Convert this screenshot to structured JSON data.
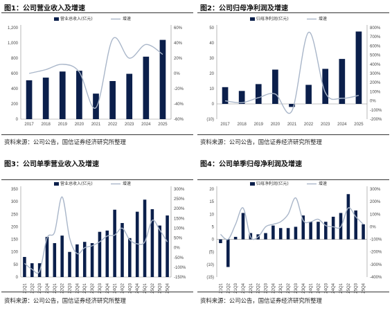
{
  "figures": [
    {
      "title": "图1：公司营业收入及增速",
      "source": "资料来源：公司公告，国信证券经济研究所整理"
    },
    {
      "title": "图2：公司归母净利润及增速",
      "source": "资料来源：公司公告，国信证券经济研究所整理"
    },
    {
      "title": "图3：公司单季营业收入及增速",
      "source": "资料来源：公司公告，国信证券经济研究所整理"
    },
    {
      "title": "图4：公司单季归母净利润及增速",
      "source": "资料来源：公司公告，国信证券经济研究所整理"
    }
  ],
  "colors": {
    "bar": "#0b1f4b",
    "line": "#a9b6c9",
    "axis": "#888888"
  },
  "chart_data": [
    {
      "type": "bar",
      "title": "",
      "categories": [
        "2017",
        "2018",
        "2019",
        "2020",
        "2021",
        "2022",
        "2023",
        "2024",
        "2025"
      ],
      "series": [
        {
          "name": "营业总收入(亿元)",
          "kind": "bar",
          "axis": "left",
          "values": [
            510,
            545,
            625,
            635,
            335,
            500,
            595,
            820,
            1040
          ]
        },
        {
          "name": "增速",
          "kind": "line",
          "axis": "right",
          "unit": "%",
          "values": [
            0,
            5,
            12,
            2,
            -45,
            45,
            20,
            38,
            25
          ]
        }
      ],
      "ylim": [
        0,
        1200
      ],
      "yticks": [
        "0",
        "200",
        "400",
        "600",
        "800",
        "1,000",
        "1,200"
      ],
      "y2lim": [
        -60,
        60
      ],
      "y2ticks": [
        "-60%",
        "-40%",
        "-20%",
        "0%",
        "20%",
        "40%",
        "60%"
      ],
      "legend": "top"
    },
    {
      "type": "bar",
      "title": "",
      "categories": [
        "2017",
        "2018",
        "2019",
        "2020",
        "2021",
        "2022",
        "2023",
        "2024",
        "2025"
      ],
      "series": [
        {
          "name": "归母净利润(亿元)",
          "kind": "bar",
          "axis": "left",
          "values": [
            11,
            8.5,
            13,
            22.5,
            -2,
            12.5,
            23,
            29.5,
            47.5
          ]
        },
        {
          "name": "增速",
          "kind": "line",
          "axis": "right",
          "unit": "%",
          "values": [
            0,
            -20,
            35,
            75,
            -110,
            750,
            90,
            28,
            60
          ]
        }
      ],
      "ylim": [
        -10,
        50
      ],
      "yticks": [
        "(10)",
        "0",
        "10",
        "20",
        "30",
        "40",
        "50"
      ],
      "y2lim": [
        -200,
        800
      ],
      "y2ticks": [
        "-200%",
        "-100%",
        "0%",
        "100%",
        "200%",
        "300%",
        "400%",
        "500%",
        "600%",
        "700%",
        "800%"
      ],
      "legend": "top"
    },
    {
      "type": "bar",
      "title": "",
      "categories": [
        "21Q1",
        "21Q2",
        "21Q3",
        "21Q4",
        "22Q1",
        "22Q2",
        "22Q3",
        "22Q4",
        "23Q1",
        "23Q2",
        "23Q3",
        "23Q4",
        "24Q1",
        "24Q2",
        "24Q3",
        "24Q4",
        "25Q1",
        "25Q2",
        "25Q3",
        "25Q4"
      ],
      "series": [
        {
          "name": "营业总收入(亿元)",
          "kind": "bar",
          "axis": "left",
          "values": [
            80,
            55,
            55,
            160,
            135,
            165,
            100,
            130,
            140,
            135,
            180,
            185,
            268,
            215,
            155,
            260,
            308,
            270,
            205,
            245
          ]
        },
        {
          "name": "增速",
          "kind": "line",
          "axis": "right",
          "unit": "%",
          "values": [
            -80,
            -110,
            -120,
            50,
            80,
            260,
            50,
            -30,
            0,
            10,
            30,
            60,
            65,
            100,
            40,
            20,
            30,
            140,
            90,
            30
          ]
        }
      ],
      "ylim": [
        0,
        350
      ],
      "yticks": [
        "0",
        "50",
        "100",
        "150",
        "200",
        "250",
        "300",
        "350"
      ],
      "y2lim": [
        -150,
        300
      ],
      "y2ticks": [
        "-150%",
        "-100%",
        "-50%",
        "0%",
        "50%",
        "100%",
        "150%",
        "200%",
        "250%",
        "300%"
      ],
      "legend": "top"
    },
    {
      "type": "bar",
      "title": "",
      "categories": [
        "21Q1",
        "21Q2",
        "21Q3",
        "21Q4",
        "22Q1",
        "22Q2",
        "22Q3",
        "22Q4",
        "23Q1",
        "23Q2",
        "23Q3",
        "23Q4",
        "24Q1",
        "24Q2",
        "24Q3",
        "24Q4",
        "25Q1",
        "25Q2",
        "25Q3",
        "25Q4"
      ],
      "series": [
        {
          "name": "归母净利润(亿元)",
          "kind": "bar",
          "axis": "left",
          "values": [
            -1.5,
            -11,
            1,
            10.5,
            2.5,
            2,
            2.5,
            5.5,
            4.5,
            4.5,
            5,
            9.5,
            7,
            7,
            7,
            9,
            10.5,
            18,
            11.5,
            6
          ]
        },
        {
          "name": "增速",
          "kind": "line",
          "axis": "right",
          "unit": "%",
          "values": [
            -60,
            -100,
            20,
            150,
            -80,
            -80,
            0,
            20,
            40,
            100,
            230,
            50,
            40,
            60,
            10,
            0,
            0,
            150,
            80,
            20
          ]
        }
      ],
      "ylim": [
        -15,
        20
      ],
      "yticks": [
        "(15)",
        "(10)",
        "(5)",
        "0",
        "5",
        "10",
        "15",
        "20"
      ],
      "y2lim": [
        -400,
        300
      ],
      "y2ticks": [
        "-400%",
        "-300%",
        "-200%",
        "-100%",
        "0%",
        "100%",
        "200%",
        "300%"
      ],
      "legend": "top"
    }
  ]
}
